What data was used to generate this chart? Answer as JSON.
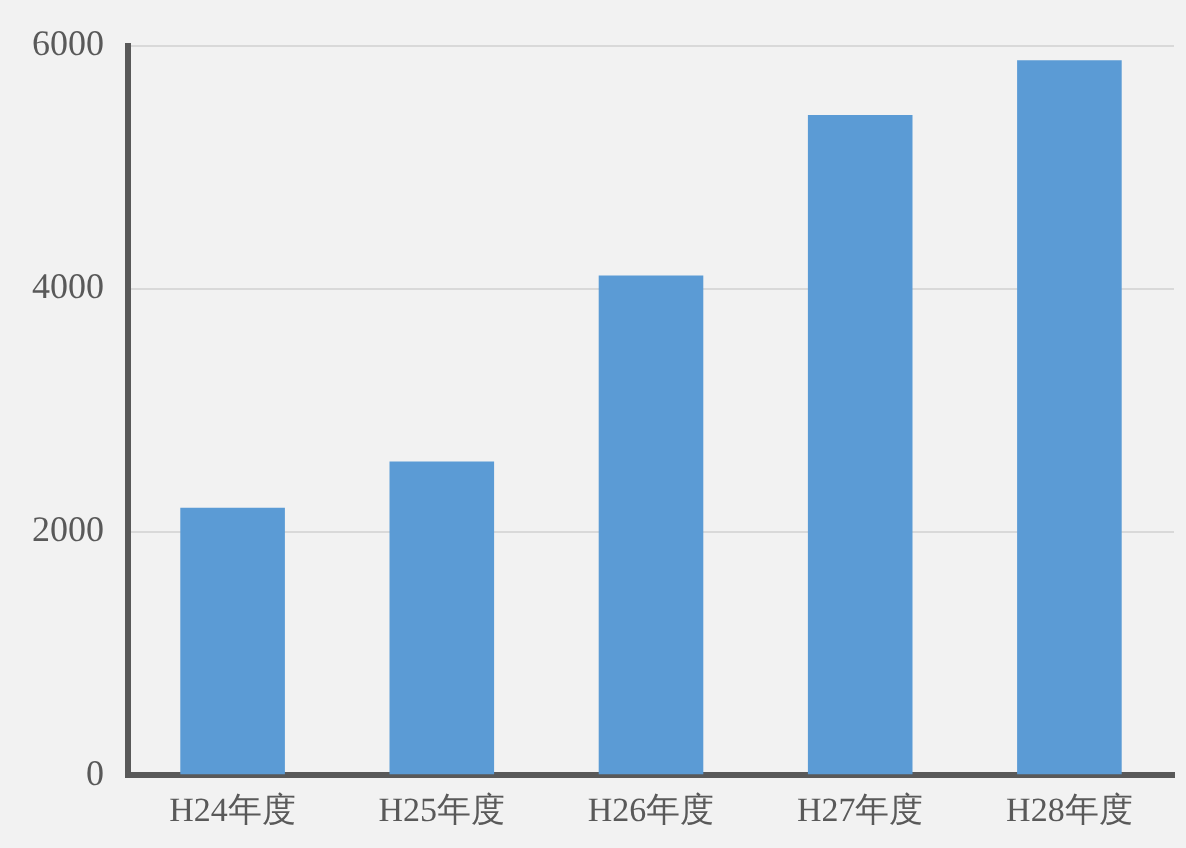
{
  "chart_data": {
    "type": "bar",
    "categories": [
      "H24年度",
      "H25年度",
      "H26年度",
      "H27年度",
      "H28年度"
    ],
    "values": [
      2200,
      2580,
      4110,
      5430,
      5880
    ],
    "color": "#5b9bd5",
    "ylim": [
      0,
      6000
    ],
    "yticks": [
      0,
      2000,
      4000,
      6000
    ],
    "grid": "y"
  }
}
